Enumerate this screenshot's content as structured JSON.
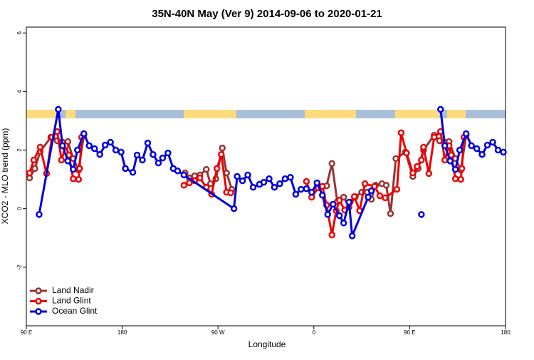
{
  "chart_data": {
    "type": "line",
    "title": "35N-40N May (Ver 9)   2014-09-06 to 2020-01-21",
    "xlabel": "Longitude",
    "ylabel": "XCO2 - MLO trend (ppm)",
    "xlim": [
      90,
      540
    ],
    "ylim": [
      -4,
      6.2
    ],
    "xticks": [
      {
        "value": 90,
        "label": "90 E"
      },
      180,
      {
        "value": 270,
        "label": "90 W"
      },
      {
        "value": 360,
        "label": "0"
      },
      {
        "value": 450,
        "label": "90 E"
      },
      180
    ],
    "yticks": [
      6,
      4,
      2,
      0,
      -2
    ],
    "legend": "lower left",
    "series": [
      {
        "name": "Land Nadir",
        "color": "#993333",
        "x": [
          93,
          98,
          103,
          113,
          119,
          124,
          129,
          134,
          139,
          144,
          null,
          239,
          243,
          248,
          253,
          259,
          263,
          268,
          274,
          278,
          283,
          null,
          372,
          377,
          382,
          388,
          393,
          399,
          405,
          410,
          414,
          418,
          424,
          428,
          432,
          437,
          446,
          453,
          458,
          463,
          473,
          478,
          483,
          487,
          493,
          498,
          503
        ],
        "values": [
          1.05,
          1.37,
          1.95,
          2.44,
          2.32,
          2.27,
          2.29,
          1.71,
          1.32,
          2.51,
          null,
          1.22,
          1.05,
          1.12,
          1.15,
          1.34,
          0.85,
          1.02,
          2.07,
          1.22,
          0.66,
          null,
          0.78,
          1.54,
          0.24,
          0.39,
          0.05,
          0.41,
          0.56,
          0.56,
          0.32,
          0.8,
          0.85,
          0.8,
          -0.17,
          1.71,
          1.93,
          1.1,
          1.37,
          2.0,
          2.51,
          2.32,
          2.27,
          2.29,
          1.71,
          1.32,
          2.51
        ]
      },
      {
        "name": "Land Glint",
        "color": "#ee0000",
        "x": [
          93,
          97,
          103,
          109,
          114,
          119,
          123,
          127,
          130,
          134,
          139,
          140,
          142,
          null,
          238,
          243,
          248,
          253,
          259,
          264,
          269,
          273,
          278,
          282,
          null,
          353,
          358,
          364,
          368,
          372,
          377,
          381,
          384,
          389,
          394,
          398,
          403,
          408,
          417,
          422,
          427,
          438,
          442,
          447,
          453,
          457,
          461,
          463,
          468,
          473,
          479,
          483,
          487,
          489,
          493,
          498,
          499,
          501
        ],
        "values": [
          1.22,
          1.66,
          2.1,
          1.2,
          2.44,
          2.63,
          1.66,
          2.15,
          1.83,
          1.02,
          1.0,
          1.37,
          2.44,
          null,
          0.8,
          0.88,
          0.95,
          1.05,
          0.73,
          0.49,
          1.37,
          1.85,
          0.56,
          0.54,
          null,
          0.93,
          0.39,
          0.71,
          0.76,
          0.12,
          -0.9,
          -0.07,
          0.29,
          -0.05,
          0.22,
          0.41,
          -0.07,
          0.85,
          0.76,
          0.44,
          0.37,
          0.66,
          2.59,
          1.9,
          1.22,
          1.44,
          1.66,
          2.1,
          1.2,
          2.44,
          2.63,
          1.66,
          2.15,
          1.83,
          1.02,
          1.0,
          1.37,
          2.44
        ]
      },
      {
        "name": "Ocean Glint",
        "color": "#0000dd",
        "x": [
          102,
          120,
          124,
          129,
          134,
          138,
          144,
          149,
          154,
          159,
          164,
          169,
          174,
          179,
          183,
          190,
          194,
          199,
          204,
          209,
          214,
          218,
          223,
          228,
          232,
          238,
          285,
          288,
          293,
          298,
          303,
          309,
          313,
          318,
          323,
          328,
          333,
          338,
          343,
          348,
          353,
          358,
          363,
          368,
          373,
          378,
          384,
          388,
          393,
          396,
          411,
          414,
          null,
          461,
          null,
          479,
          483,
          488,
          493,
          497,
          503,
          508,
          513,
          518,
          523,
          528,
          533,
          538
        ],
        "values": [
          -0.2,
          3.39,
          2.15,
          1.63,
          1.34,
          2.0,
          2.56,
          2.15,
          2.05,
          1.85,
          2.17,
          2.27,
          2.0,
          1.93,
          1.37,
          1.24,
          1.83,
          1.66,
          2.24,
          1.85,
          1.56,
          1.73,
          1.9,
          1.37,
          1.29,
          1.15,
          0.0,
          1.1,
          0.95,
          1.15,
          0.73,
          0.83,
          0.9,
          1.02,
          0.73,
          0.85,
          1.02,
          1.07,
          0.49,
          0.66,
          0.68,
          0.56,
          0.88,
          0.46,
          -0.2,
          0.15,
          -0.24,
          -0.49,
          0.22,
          -0.93,
          0.39,
          0.61,
          null,
          -0.2,
          null,
          3.39,
          2.15,
          1.63,
          1.34,
          2.0,
          2.56,
          2.15,
          2.05,
          1.85,
          2.17,
          2.27,
          2.0,
          1.93
        ]
      }
    ]
  }
}
